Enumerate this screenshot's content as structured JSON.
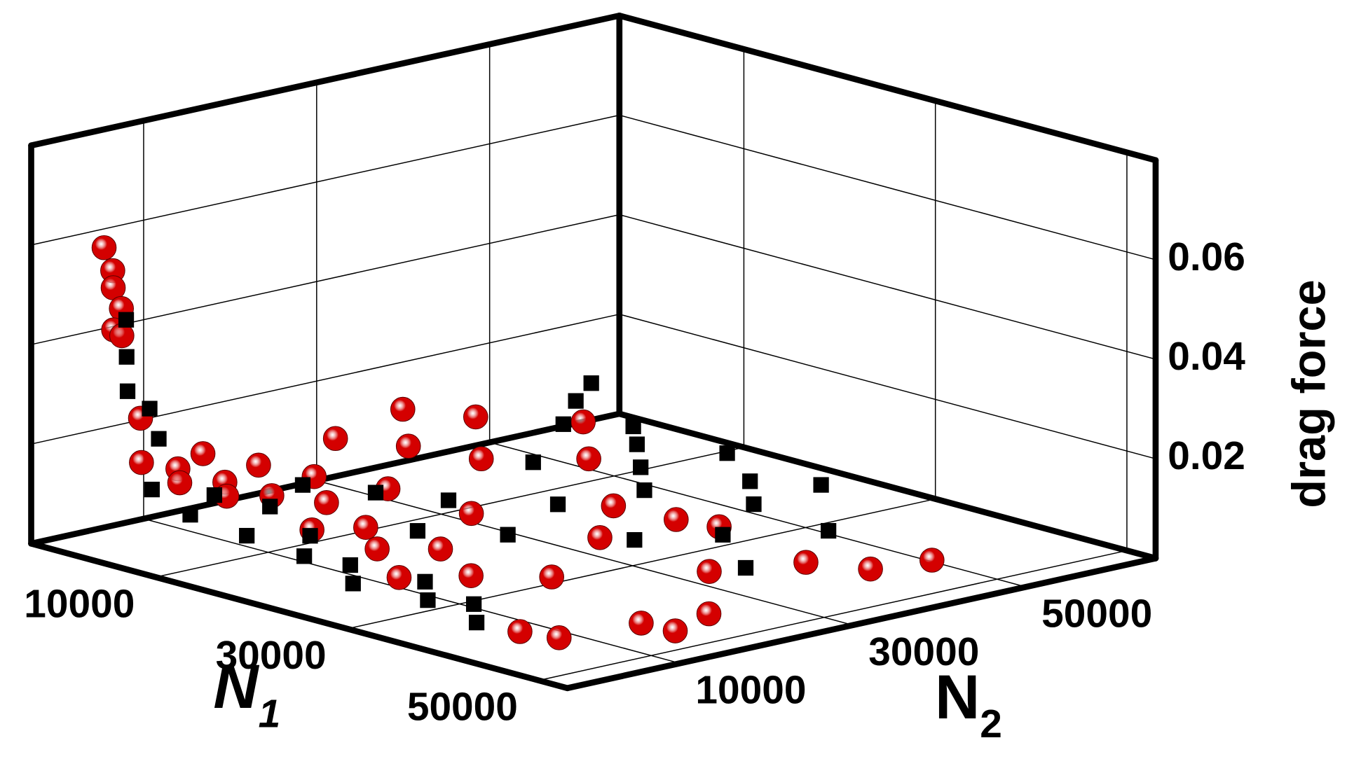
{
  "chart_data": {
    "type": "scatter3d",
    "xlabel": {
      "main": "N",
      "sub": "1"
    },
    "ylabel": {
      "main": "N",
      "sub": "2"
    },
    "zlabel": "drag force",
    "xlim": [
      -3000,
      53000
    ],
    "ylim": [
      -3000,
      65000
    ],
    "zlim": [
      0,
      0.08
    ],
    "xticks": [
      10000,
      30000,
      50000
    ],
    "yticks": [
      10000,
      30000,
      50000
    ],
    "zticks": [
      0.02,
      0.04,
      0.06
    ],
    "grid": true,
    "series": [
      {
        "color": "#d40000",
        "marker": "circle",
        "x": [
          1000,
          1000,
          1500,
          1000,
          2000,
          1500,
          3000,
          4000,
          6000,
          8000,
          10000,
          12000,
          14000,
          5000,
          9000,
          13000,
          17000,
          20000,
          22000,
          18000,
          8000,
          12000,
          6000,
          10000,
          16000,
          25000,
          28000,
          30000,
          33000,
          24000,
          20000,
          14000,
          28000,
          36000,
          32000,
          27500,
          30000,
          40600,
          44000,
          45000,
          41900,
          44000,
          45800,
          48000,
          47000,
          38000
        ],
        "y": [
          1000,
          2000,
          1500,
          3000,
          1000,
          2500,
          3000,
          2000,
          4000,
          2000,
          5000,
          3000,
          6000,
          8000,
          10000,
          12000,
          9000,
          4000,
          8000,
          15000,
          20000,
          24000,
          30000,
          34000,
          28000,
          6000,
          10000,
          3000,
          8000,
          18000,
          36000,
          42000,
          30000,
          14000,
          24000,
          37800,
          40000,
          38300,
          42000,
          48000,
          3800,
          6000,
          13500,
          15000,
          20000,
          30000
        ],
        "z": [
          0.06,
          0.055,
          0.052,
          0.047,
          0.044,
          0.042,
          0.026,
          0.018,
          0.017,
          0.016,
          0.016,
          0.015,
          0.015,
          0.018,
          0.017,
          0.016,
          0.014,
          0.012,
          0.012,
          0.015,
          0.018,
          0.017,
          0.019,
          0.018,
          0.015,
          0.01,
          0.01,
          0.008,
          0.008,
          0.012,
          0.014,
          0.016,
          0.011,
          0.007,
          0.009,
          0.005,
          0.004,
          0.003,
          0.002,
          0.002,
          0.003,
          0.002,
          0.003,
          0.002,
          0.003,
          0.003
        ]
      },
      {
        "color": "#000000",
        "marker": "square",
        "x": [
          1500,
          2000,
          3000,
          3500,
          4000,
          6000,
          8000,
          10000,
          12000,
          15000,
          18000,
          21000,
          24000,
          27000,
          30000,
          33000,
          36000,
          39000,
          10000,
          14000,
          18000,
          22000,
          26000,
          9300,
          6000,
          4000,
          12000,
          16000,
          20000,
          24000,
          20000,
          26000,
          30000,
          28000,
          34000,
          32000,
          36000,
          40000,
          16000,
          24000
        ],
        "y": [
          3000,
          2500,
          1500,
          3500,
          4000,
          1000,
          6000,
          1000,
          8000,
          2000,
          6000,
          2000,
          4000,
          1000,
          6000,
          3000,
          5000,
          2000,
          14000,
          18000,
          22000,
          14000,
          20000,
          44900,
          50000,
          54000,
          50000,
          46000,
          42000,
          38000,
          52000,
          48000,
          44000,
          54000,
          36000,
          28000,
          46000,
          32000,
          34000,
          28000
        ],
        "z": [
          0.045,
          0.038,
          0.032,
          0.028,
          0.022,
          0.014,
          0.012,
          0.011,
          0.011,
          0.009,
          0.009,
          0.008,
          0.007,
          0.006,
          0.006,
          0.005,
          0.005,
          0.004,
          0.012,
          0.011,
          0.01,
          0.009,
          0.008,
          0.012,
          0.013,
          0.014,
          0.011,
          0.011,
          0.01,
          0.009,
          0.009,
          0.008,
          0.007,
          0.006,
          0.006,
          0.007,
          0.004,
          0.004,
          0.012,
          0.01
        ]
      }
    ]
  }
}
